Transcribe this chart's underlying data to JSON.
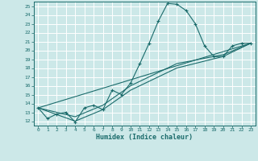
{
  "xlabel": "Humidex (Indice chaleur)",
  "xlim": [
    -0.5,
    23.5
  ],
  "ylim": [
    11.5,
    25.5
  ],
  "yticks": [
    12,
    13,
    14,
    15,
    16,
    17,
    18,
    19,
    20,
    21,
    22,
    23,
    24,
    25
  ],
  "xticks": [
    0,
    1,
    2,
    3,
    4,
    5,
    6,
    7,
    8,
    9,
    10,
    11,
    12,
    13,
    14,
    15,
    16,
    17,
    18,
    19,
    20,
    21,
    22,
    23
  ],
  "bg_color": "#cce8e8",
  "grid_color": "#ffffff",
  "line_color": "#1a6b6b",
  "main_series": [
    [
      0,
      13.5
    ],
    [
      1,
      12.3
    ],
    [
      2,
      12.8
    ],
    [
      3,
      13.0
    ],
    [
      4,
      11.9
    ],
    [
      5,
      13.5
    ],
    [
      6,
      13.8
    ],
    [
      7,
      13.3
    ],
    [
      8,
      15.5
    ],
    [
      9,
      15.0
    ],
    [
      10,
      16.3
    ],
    [
      11,
      18.5
    ],
    [
      12,
      20.8
    ],
    [
      13,
      23.3
    ],
    [
      14,
      25.3
    ],
    [
      15,
      25.2
    ],
    [
      16,
      24.5
    ],
    [
      17,
      23.0
    ],
    [
      18,
      20.5
    ],
    [
      19,
      19.3
    ],
    [
      20,
      19.3
    ],
    [
      21,
      20.5
    ],
    [
      22,
      20.8
    ],
    [
      23,
      20.8
    ]
  ],
  "line2": [
    [
      0,
      13.5
    ],
    [
      23,
      20.8
    ]
  ],
  "line3": [
    [
      0,
      13.5
    ],
    [
      4,
      12.0
    ],
    [
      7,
      13.3
    ],
    [
      10,
      15.5
    ],
    [
      15,
      18.0
    ],
    [
      20,
      19.3
    ],
    [
      23,
      20.8
    ]
  ],
  "line4": [
    [
      0,
      13.5
    ],
    [
      4,
      12.5
    ],
    [
      7,
      13.8
    ],
    [
      10,
      16.0
    ],
    [
      15,
      18.5
    ],
    [
      20,
      19.5
    ],
    [
      23,
      20.8
    ]
  ]
}
